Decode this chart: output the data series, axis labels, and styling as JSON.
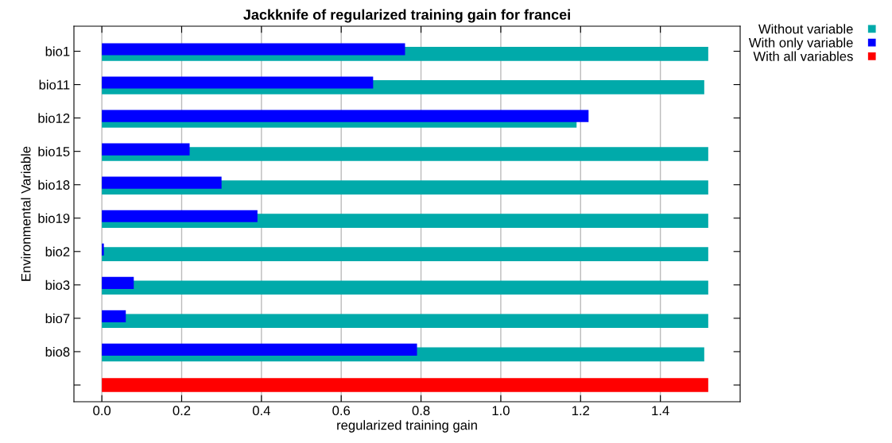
{
  "chart_data": {
    "type": "bar",
    "orientation": "horizontal",
    "title": "Jackknife of regularized training gain for francei",
    "xlabel": "regularized training gain",
    "ylabel": "Environmental Variable",
    "categories": [
      "bio1",
      "bio11",
      "bio12",
      "bio15",
      "bio18",
      "bio19",
      "bio2",
      "bio3",
      "bio7",
      "bio8",
      null
    ],
    "series": [
      {
        "name": "Without variable",
        "color": "#00aaaa",
        "values": [
          1.52,
          1.51,
          1.19,
          1.52,
          1.52,
          1.52,
          1.52,
          1.52,
          1.52,
          1.51,
          null
        ]
      },
      {
        "name": "With only variable",
        "color": "#0000ff",
        "values": [
          0.76,
          0.68,
          1.22,
          0.22,
          0.3,
          0.39,
          0.005,
          0.08,
          0.06,
          0.79,
          null
        ]
      },
      {
        "name": "With all variables",
        "color": "#ff0000",
        "values": [
          null,
          null,
          null,
          null,
          null,
          null,
          null,
          null,
          null,
          null,
          1.52
        ]
      }
    ],
    "xlim": [
      -0.07,
      1.6
    ],
    "xticks": [
      {
        "value": 0,
        "label": "0.0"
      },
      {
        "value": 0.2,
        "label": "0.2"
      },
      {
        "value": 0.4,
        "label": "0.4"
      },
      {
        "value": 0.6,
        "label": "0.6"
      },
      {
        "value": 0.8,
        "label": "0.8"
      },
      {
        "value": 1.0,
        "label": "1.0"
      },
      {
        "value": 1.2,
        "label": "1.2"
      },
      {
        "value": 1.4,
        "label": "1.4"
      }
    ],
    "grid": "x",
    "legend": "top right"
  }
}
